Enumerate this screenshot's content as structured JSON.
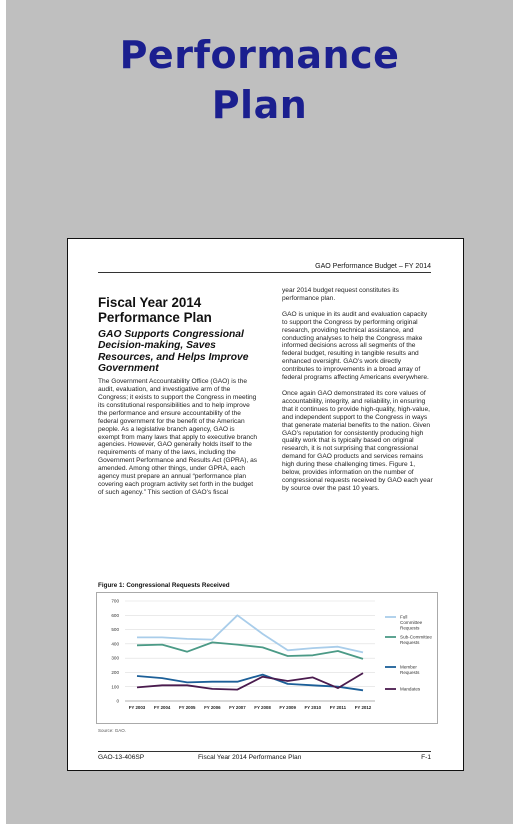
{
  "cover": {
    "title_line1": "Performance",
    "title_line2": "Plan"
  },
  "page": {
    "header": "GAO Performance Budget – FY 2014",
    "heading": "Fiscal Year 2014 Performance Plan",
    "subheading": "GAO Supports Congressional Decision-making, Saves Resources, and Helps Improve Government",
    "left_paragraph": "The Government Accountability Office (GAO) is the audit, evaluation, and investigative arm of the Congress; it exists to support the Congress in meeting its constitutional responsibilities and to help improve the performance and ensure accountability of the federal government for the benefit of the American people. As a legislative branch agency, GAO is exempt from many laws that apply to executive branch agencies. However, GAO generally holds itself to the requirements of many of the laws, including the Government Performance and Results Act (GPRA), as amended. Among other things, under GPRA, each agency must prepare an annual “performance plan covering each program activity set forth in the budget of such agency.” This section of GAO’s fiscal",
    "right_paragraphs": [
      "year 2014 budget request constitutes its performance plan.",
      "GAO is unique in its audit and evaluation capacity to support the Congress by performing original research, providing technical assistance, and conducting analyses to help the Congress make informed decisions across all segments of the federal budget, resulting in tangible results and enhanced oversight. GAO’s work directly contributes to improvements in a broad array of federal programs affecting Americans everywhere.",
      "Once again GAO demonstrated its core values of accountability, integrity, and reliability, in ensuring that it continues to provide high-quality, high-value, and independent support to the Congress in ways that generate material benefits to the nation. Given GAO’s reputation for consistently producing high quality work that is typically based on original research, it is not surprising that congressional demand for GAO products and services remains high during these challenging times. Figure 1, below, provides information on the number of congressional requests received by GAO each year by source over the past 10 years."
    ],
    "figure_caption": "Figure 1: Congressional Requests Received",
    "source": "Source: GAO.",
    "footer_left": "GAO-13-406SP",
    "footer_center": "Fiscal Year 2014 Performance Plan",
    "footer_right": "F-1"
  },
  "chart_data": {
    "type": "line",
    "title": "Congressional Requests Received",
    "categories": [
      "FY 2003",
      "FY 2004",
      "FY 2005",
      "FY 2006",
      "FY 2007",
      "FY 2008",
      "FY 2009",
      "FY 2010",
      "FY 2011",
      "FY 2012"
    ],
    "series": [
      {
        "name": "Full Committee Requests",
        "color": "#a9cdea",
        "values": [
          445,
          445,
          435,
          430,
          600,
          470,
          355,
          370,
          380,
          340
        ]
      },
      {
        "name": "Sub-Committee Requests",
        "color": "#4b9a86",
        "values": [
          390,
          395,
          345,
          410,
          395,
          375,
          315,
          320,
          350,
          295
        ]
      },
      {
        "name": "Member Requests",
        "color": "#1c5f98",
        "values": [
          175,
          160,
          130,
          135,
          135,
          185,
          120,
          110,
          100,
          75
        ]
      },
      {
        "name": "Mandates",
        "color": "#4a1b4e",
        "values": [
          95,
          110,
          110,
          85,
          80,
          170,
          140,
          165,
          90,
          195
        ]
      }
    ],
    "yticks": [
      0,
      100,
      200,
      300,
      400,
      500,
      600,
      700
    ],
    "ylim": [
      0,
      700
    ],
    "grid": true,
    "legend": "right"
  }
}
